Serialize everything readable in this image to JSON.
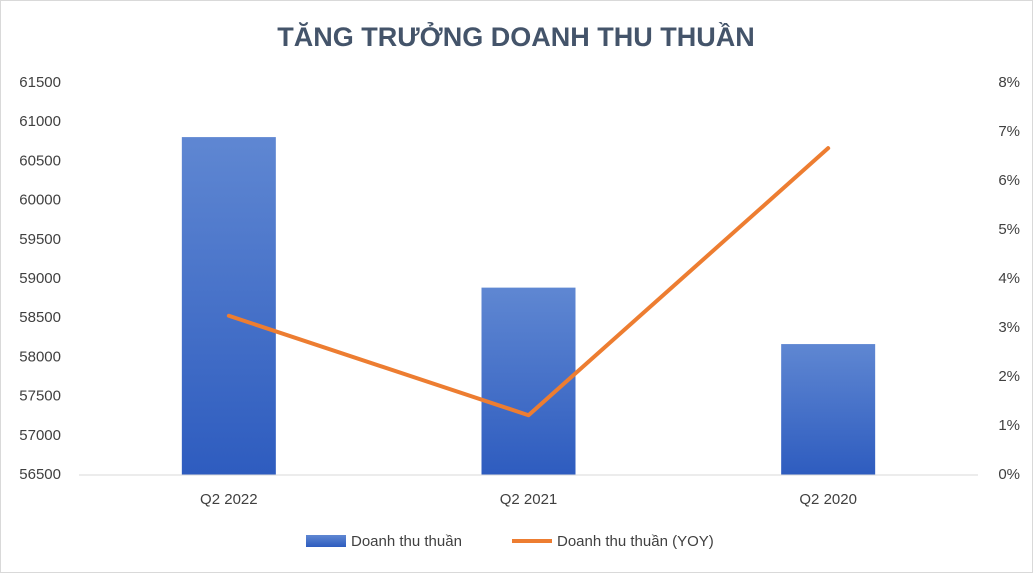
{
  "chart_data": {
    "type": "bar",
    "title": "TĂNG TRƯỞNG DOANH THU THUẦN",
    "categories": [
      "Q2 2022",
      "Q2 2021",
      "Q2 2020"
    ],
    "series": [
      {
        "name": "Doanh thu thuần",
        "type": "bar",
        "color": "#4472c4",
        "values": [
          60810,
          58890,
          58170
        ]
      },
      {
        "name": "Doanh thu thuần (YOY)",
        "type": "line",
        "axis": "y2",
        "color": "#ed7d31",
        "values": [
          3.25,
          1.22,
          6.67
        ]
      }
    ],
    "ylim": [
      56500,
      61500
    ],
    "yticks": [
      56500,
      57000,
      57500,
      58000,
      58500,
      59000,
      59500,
      60000,
      60500,
      61000,
      61500
    ],
    "y2lim": [
      0,
      8
    ],
    "y2ticks": [
      {
        "value": 0,
        "label": "0%"
      },
      {
        "value": 1,
        "label": "1%"
      },
      {
        "value": 2,
        "label": "2%"
      },
      {
        "value": 3,
        "label": "3%"
      },
      {
        "value": 4,
        "label": "4%"
      },
      {
        "value": 5,
        "label": "5%"
      },
      {
        "value": 6,
        "label": "6%"
      },
      {
        "value": 7,
        "label": "7%"
      },
      {
        "value": 8,
        "label": "8%"
      }
    ],
    "legend": "bottom"
  }
}
